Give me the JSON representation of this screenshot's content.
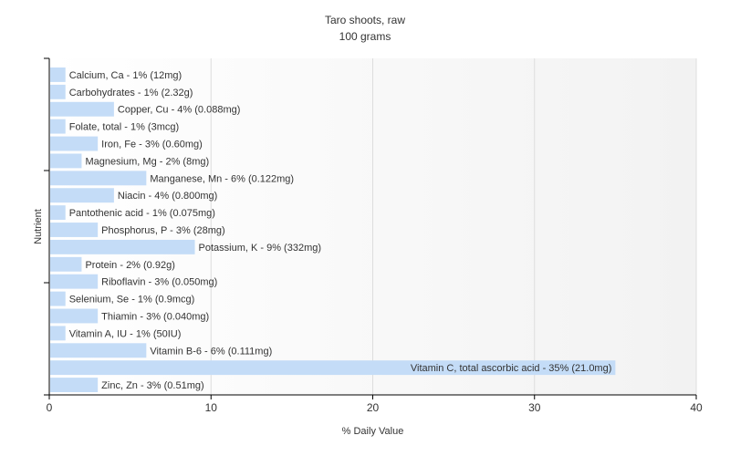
{
  "chart_data": {
    "type": "bar",
    "orientation": "horizontal",
    "title": "Taro shoots, raw",
    "subtitle": "100 grams",
    "xlabel": "% Daily Value",
    "ylabel": "Nutrient",
    "xlim": [
      0,
      40
    ],
    "xticks": [
      0,
      10,
      20,
      30,
      40
    ],
    "grid": true,
    "bar_color": "#c4dcf7",
    "categories": [
      "Calcium, Ca",
      "Carbohydrates",
      "Copper, Cu",
      "Folate, total",
      "Iron, Fe",
      "Magnesium, Mg",
      "Manganese, Mn",
      "Niacin",
      "Pantothenic acid",
      "Phosphorus, P",
      "Potassium, K",
      "Protein",
      "Riboflavin",
      "Selenium, Se",
      "Thiamin",
      "Vitamin A, IU",
      "Vitamin B-6",
      "Vitamin C, total ascorbic acid",
      "Zinc, Zn"
    ],
    "values": [
      1,
      1,
      4,
      1,
      3,
      2,
      6,
      4,
      1,
      3,
      9,
      2,
      3,
      1,
      3,
      1,
      6,
      35,
      3
    ],
    "labels": [
      "Calcium, Ca - 1% (12mg)",
      "Carbohydrates - 1% (2.32g)",
      "Copper, Cu - 4% (0.088mg)",
      "Folate, total - 1% (3mcg)",
      "Iron, Fe - 3% (0.60mg)",
      "Magnesium, Mg - 2% (8mg)",
      "Manganese, Mn - 6% (0.122mg)",
      "Niacin - 4% (0.800mg)",
      "Pantothenic acid - 1% (0.075mg)",
      "Phosphorus, P - 3% (28mg)",
      "Potassium, K - 9% (332mg)",
      "Protein - 2% (0.92g)",
      "Riboflavin - 3% (0.050mg)",
      "Selenium, Se - 1% (0.9mcg)",
      "Thiamin - 3% (0.040mg)",
      "Vitamin A, IU - 1% (50IU)",
      "Vitamin B-6 - 6% (0.111mg)",
      "Vitamin C, total ascorbic acid - 35% (21.0mg)",
      "Zinc, Zn - 3% (0.51mg)"
    ]
  }
}
